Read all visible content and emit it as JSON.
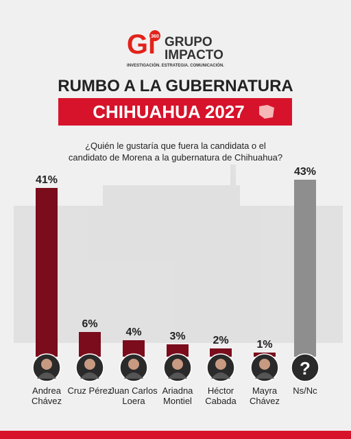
{
  "header": {
    "logo_mark": "Gi",
    "logo_badge": "360",
    "brand_line1": "GRUPO",
    "brand_line2": "IMPACTO",
    "tagline": "INVESTIGACIÓN. ESTRATEGIA. COMUNICACIÓN."
  },
  "chart_data": {
    "type": "bar",
    "title": "RUMBO A LA GUBERNATURA",
    "subtitle": "CHIHUAHUA 2027",
    "question": "¿Quién le gustaría que fuera la candidata o el candidato de Morena a la gubernatura de Chihuahua?",
    "categories": [
      "Andrea Chávez",
      "Cruz Pérez",
      "Juan Carlos Loera",
      "Ariadna Montiel",
      "Héctor Cabada",
      "Mayra Chávez",
      "Ns/Nc"
    ],
    "values": [
      41,
      6,
      4,
      3,
      2,
      1,
      43
    ],
    "value_labels": [
      "41%",
      "6%",
      "4%",
      "3%",
      "2%",
      "1%",
      "43%"
    ],
    "colors": [
      "#7a0c1c",
      "#7a0c1c",
      "#7a0c1c",
      "#7a0c1c",
      "#7a0c1c",
      "#7a0c1c",
      "#8e8e8e"
    ],
    "unknown_marker": "?"
  }
}
